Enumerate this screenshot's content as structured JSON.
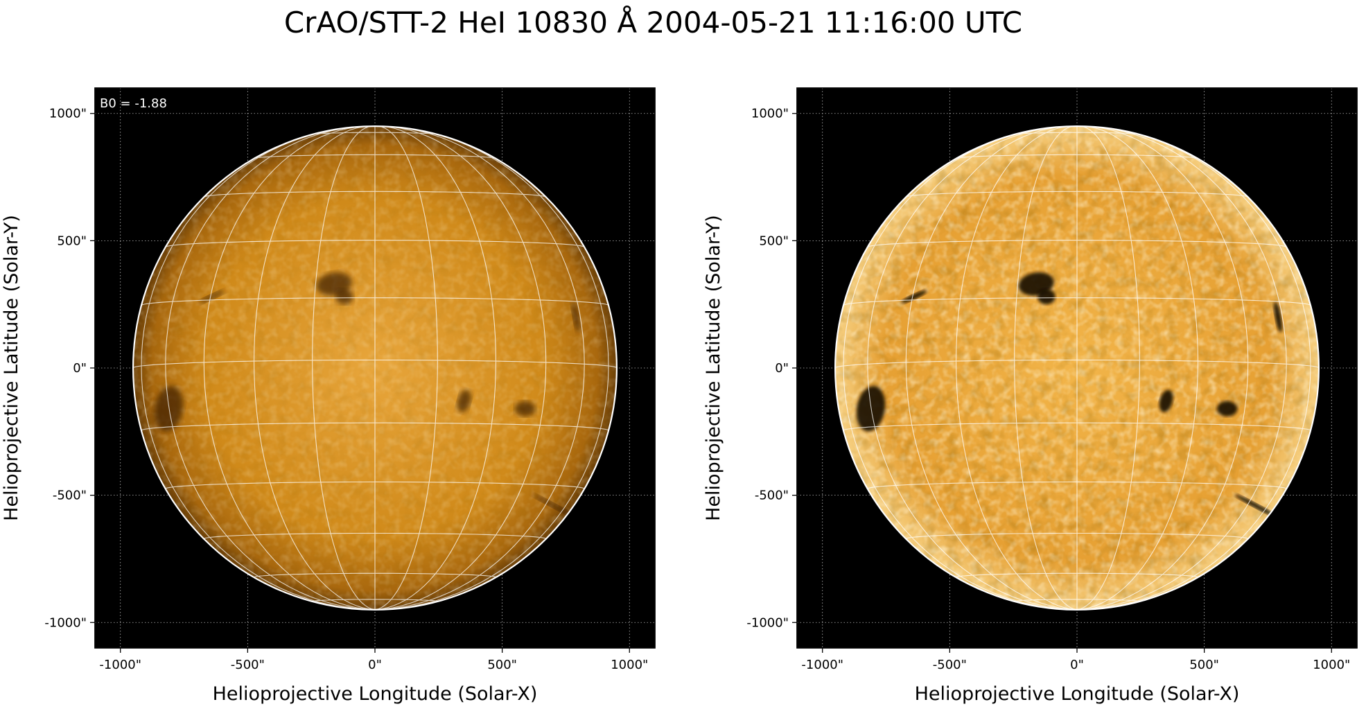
{
  "figure": {
    "title": "CrAO/STT-2 HeI 10830 Å 2004-05-21 11:16:00 UTC",
    "background": "#ffffff"
  },
  "colors": {
    "disk_base": "#d08a1a",
    "disk_center": "#e6a43a",
    "disk_limb": "#6a3f08",
    "frame": "#000000",
    "grid": "#ffffff",
    "limb_circle": "#ffffff"
  },
  "chart_data": [
    {
      "type": "image",
      "xlabel": "Helioprojective Longitude (Solar-X)",
      "ylabel": "Helioprojective Latitude (Solar-Y)",
      "xlim": [
        -1100,
        1100
      ],
      "ylim": [
        -1100,
        1100
      ],
      "x_ticks": [
        "-1000\"",
        "-500\"",
        "0\"",
        "500\"",
        "1000\""
      ],
      "y_ticks": [
        "1000\"",
        "500\"",
        "0\"",
        "-500\"",
        "-1000\""
      ],
      "annotation": "B0 = -1.88",
      "grid": "on",
      "processing": "smooth"
    },
    {
      "type": "image",
      "xlabel": "Helioprojective Longitude (Solar-X)",
      "ylabel": "Helioprojective Latitude (Solar-Y)",
      "xlim": [
        -1100,
        1100
      ],
      "ylim": [
        -1100,
        1100
      ],
      "x_ticks": [
        "-1000\"",
        "-500\"",
        "0\"",
        "500\"",
        "1000\""
      ],
      "y_ticks": [
        "1000\"",
        "500\"",
        "0\"",
        "-500\"",
        "-1000\""
      ],
      "annotation": "",
      "grid": "on",
      "processing": "contrast-enhanced"
    }
  ]
}
